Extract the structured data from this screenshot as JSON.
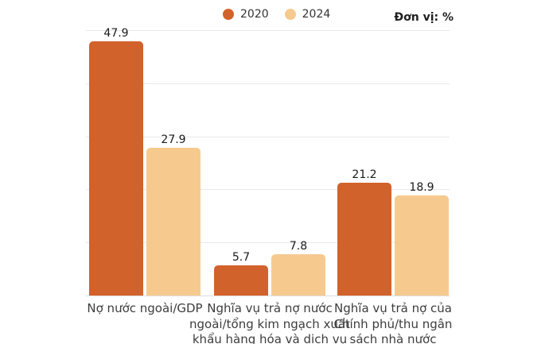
{
  "header": {
    "unit_label": "Đơn vị: %"
  },
  "colors": {
    "series_2020": "#d2622b",
    "series_2024": "#f6ca8e",
    "grid": "#e9e9e9",
    "baseline": "#dedede",
    "value_label": "#1a1a1a",
    "category_label": "#3d3d3d",
    "legend_text": "#333333"
  },
  "chart_data": {
    "type": "bar",
    "title": "",
    "unit": "%",
    "legend_position": "top",
    "grid": true,
    "value_labels": true,
    "ylim": [
      0,
      50
    ],
    "gridline_step": 10,
    "categories": [
      "Nợ nước ngoài/GDP",
      "Nghĩa vụ trả nợ nước ngoài/tổng kim ngạch xuất khẩu hàng hóa và dịch vụ",
      "Nghĩa vụ trả nợ của Chính phủ/thu ngân sách nhà nước"
    ],
    "category_label_lines": [
      [
        "Nợ nước ngoài/GDP"
      ],
      [
        "Nghĩa vụ trả nợ nước",
        "ngoài/tổng kim ngạch xuất",
        "khẩu hàng hóa và dịch vụ"
      ],
      [
        "Nghĩa vụ trả nợ của",
        "Chính phủ/thu ngân",
        "sách nhà nước"
      ]
    ],
    "series": [
      {
        "name": "2020",
        "color": "#d2622b",
        "values": [
          47.9,
          5.7,
          21.2
        ]
      },
      {
        "name": "2024",
        "color": "#f6ca8e",
        "values": [
          27.9,
          7.8,
          18.9
        ]
      }
    ]
  }
}
